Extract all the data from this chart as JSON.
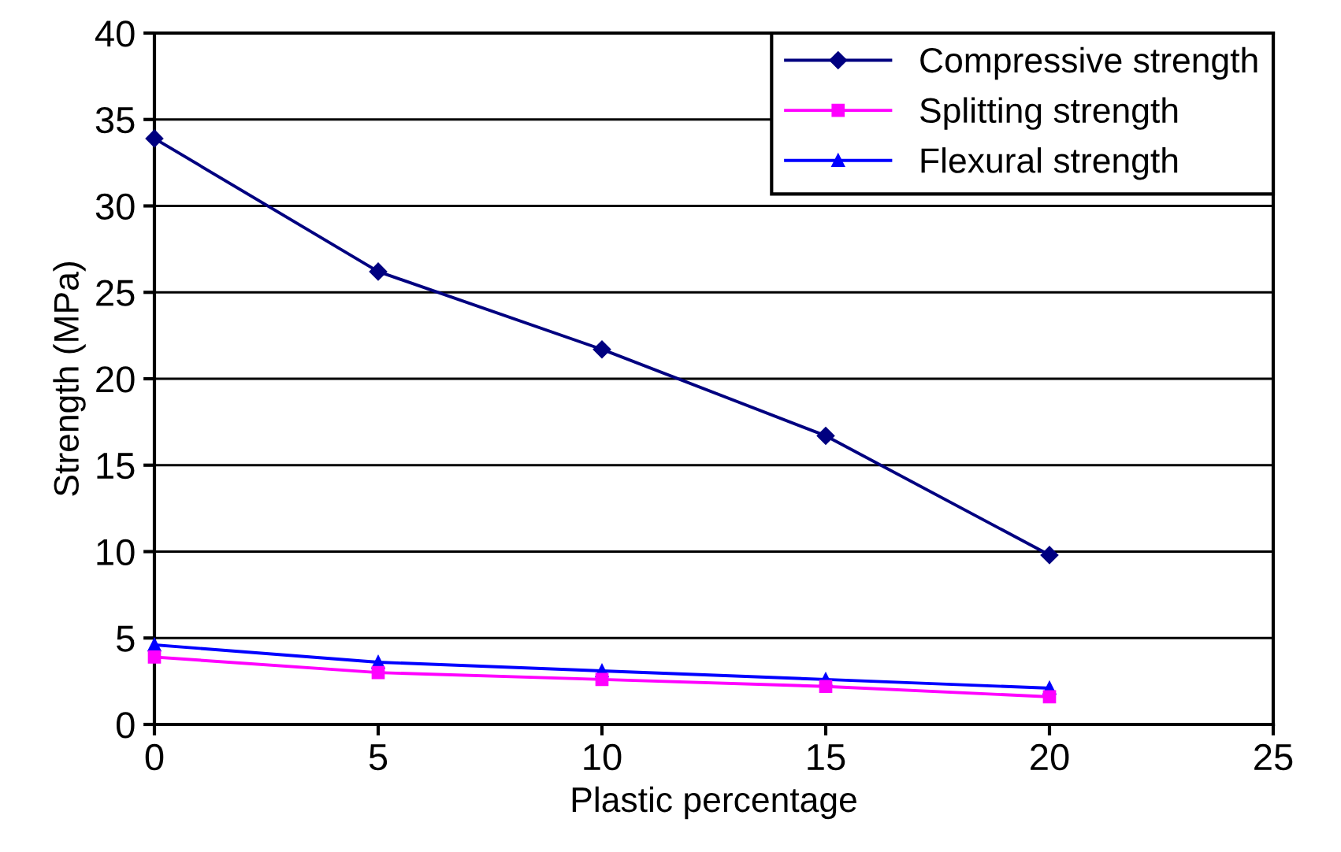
{
  "chart_data": {
    "type": "line",
    "xlabel": "Plastic percentage",
    "ylabel": "Strength (MPa)",
    "x": [
      0,
      5,
      10,
      15,
      20
    ],
    "series": [
      {
        "name": "Compressive strength",
        "color": "#000080",
        "marker": "diamond",
        "values": [
          33.9,
          26.2,
          21.7,
          16.7,
          9.8
        ]
      },
      {
        "name": "Splitting strength",
        "color": "#ff00ff",
        "marker": "square",
        "values": [
          3.9,
          3.0,
          2.6,
          2.2,
          1.6
        ]
      },
      {
        "name": "Flexural strength",
        "color": "#0000ff",
        "marker": "triangle",
        "values": [
          4.6,
          3.6,
          3.1,
          2.6,
          2.1
        ]
      }
    ],
    "xlim": [
      0,
      25
    ],
    "xticks": [
      0,
      5,
      10,
      15,
      20,
      25
    ],
    "ylim": [
      0,
      40
    ],
    "yticks": [
      0,
      5,
      10,
      15,
      20,
      25,
      30,
      35,
      40
    ],
    "grid": "y",
    "legend": "top right",
    "line_style": "solid"
  }
}
